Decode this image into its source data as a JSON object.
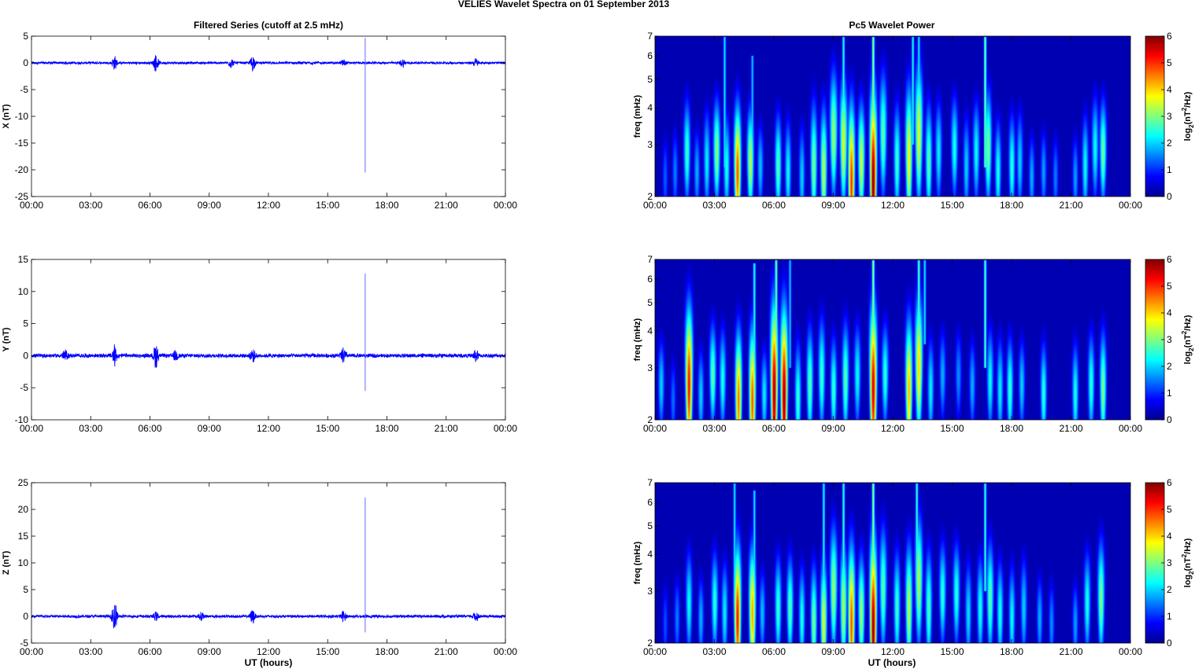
{
  "figure_title": "VELIES Wavelet Spectra on 01 September 2013",
  "left_column_title": "Filtered Series (cutoff at 2.5 mHz)",
  "right_column_title": "Pc5 Wavelet Power",
  "time_tick_labels": [
    "00:00",
    "03:00",
    "06:00",
    "09:00",
    "12:00",
    "15:00",
    "18:00",
    "21:00",
    "00:00"
  ],
  "x_axis_label": "UT (hours)",
  "colorbar": {
    "label_prefix": "log",
    "label_sub": "2",
    "label_mid": "(nT",
    "label_sup": "2",
    "label_suffix": "/Hz)",
    "ticks": [
      0,
      1,
      2,
      3,
      4,
      5,
      6
    ],
    "range": [
      0,
      6
    ],
    "colormap": "jet"
  },
  "chart_data": [
    {
      "type": "line",
      "component": "X",
      "ylabel": "X (nT)",
      "xlim_hours": [
        0,
        24
      ],
      "ylim": [
        -25,
        5
      ],
      "yticks": [
        -25,
        -20,
        -15,
        -10,
        -5,
        0,
        5
      ],
      "series_color": "#0000ff",
      "baseline_noise_amplitude": 0.25,
      "bursts": [
        {
          "t": 4.2,
          "amp": 1.2
        },
        {
          "t": 6.3,
          "amp": 1.5
        },
        {
          "t": 10.1,
          "amp": 0.8
        },
        {
          "t": 11.2,
          "amp": 1.4
        },
        {
          "t": 15.8,
          "amp": 0.6
        },
        {
          "t": 18.8,
          "amp": 0.7
        },
        {
          "t": 22.5,
          "amp": 0.8
        }
      ],
      "spikes": [
        {
          "t": 16.9,
          "min": -20.5,
          "max": 4.7
        }
      ]
    },
    {
      "type": "line",
      "component": "Y",
      "ylabel": "Y (nT)",
      "xlim_hours": [
        0,
        24
      ],
      "ylim": [
        -10,
        15
      ],
      "yticks": [
        -10,
        -5,
        0,
        5,
        10,
        15
      ],
      "series_color": "#0000ff",
      "baseline_noise_amplitude": 0.35,
      "bursts": [
        {
          "t": 1.7,
          "amp": 0.7
        },
        {
          "t": 4.2,
          "amp": 1.5
        },
        {
          "t": 6.3,
          "amp": 1.8
        },
        {
          "t": 7.3,
          "amp": 0.7
        },
        {
          "t": 11.2,
          "amp": 0.9
        },
        {
          "t": 15.8,
          "amp": 1.1
        },
        {
          "t": 22.5,
          "amp": 0.8
        }
      ],
      "spikes": [
        {
          "t": 16.9,
          "min": -5.5,
          "max": 12.8
        }
      ]
    },
    {
      "type": "line",
      "component": "Z",
      "ylabel": "Z (nT)",
      "xlim_hours": [
        0,
        24
      ],
      "ylim": [
        -5,
        25
      ],
      "yticks": [
        -5,
        0,
        5,
        10,
        15,
        20,
        25
      ],
      "series_color": "#0000ff",
      "baseline_noise_amplitude": 0.3,
      "bursts": [
        {
          "t": 4.2,
          "amp": 3.0
        },
        {
          "t": 6.3,
          "amp": 0.7
        },
        {
          "t": 8.6,
          "amp": 0.7
        },
        {
          "t": 11.2,
          "amp": 1.2
        },
        {
          "t": 15.8,
          "amp": 0.9
        },
        {
          "t": 22.5,
          "amp": 0.9
        }
      ],
      "spikes": [
        {
          "t": 16.9,
          "min": -3.0,
          "max": 22.2
        }
      ]
    },
    {
      "type": "heatmap",
      "component": "X",
      "ylabel": "freq (mHz)",
      "xlim_hours": [
        0,
        24
      ],
      "ylim_mhz": [
        2,
        7
      ],
      "y_scale": "log",
      "yticks": [
        2,
        3,
        4,
        5,
        6,
        7
      ],
      "value_range": [
        0,
        6
      ],
      "background_value": 0.3,
      "blobs": [
        {
          "t": 0.5,
          "f": 2.3,
          "peak": 1.3,
          "thick": 1.5
        },
        {
          "t": 1.0,
          "f": 2.4,
          "peak": 1.5,
          "thick": 1.5
        },
        {
          "t": 1.6,
          "f": 2.8,
          "peak": 2.6,
          "thick": 1.8
        },
        {
          "t": 2.1,
          "f": 2.4,
          "peak": 1.8,
          "thick": 1.5
        },
        {
          "t": 2.6,
          "f": 2.6,
          "peak": 2.2,
          "thick": 1.8
        },
        {
          "t": 3.1,
          "f": 2.8,
          "peak": 3.1,
          "thick": 1.8
        },
        {
          "t": 3.6,
          "f": 2.5,
          "peak": 2.4,
          "thick": 1.8
        },
        {
          "t": 4.15,
          "f": 2.4,
          "peak": 4.8,
          "thick": 2.2
        },
        {
          "t": 4.8,
          "f": 2.6,
          "peak": 3.4,
          "thick": 1.8
        },
        {
          "t": 5.3,
          "f": 2.5,
          "peak": 1.9,
          "thick": 1.5
        },
        {
          "t": 6.2,
          "f": 2.5,
          "peak": 2.8,
          "thick": 1.8
        },
        {
          "t": 6.7,
          "f": 2.4,
          "peak": 2.3,
          "thick": 1.8
        },
        {
          "t": 7.4,
          "f": 2.3,
          "peak": 2.0,
          "thick": 1.8
        },
        {
          "t": 8.0,
          "f": 2.5,
          "peak": 3.0,
          "thick": 2.2
        },
        {
          "t": 8.5,
          "f": 2.4,
          "peak": 3.4,
          "thick": 2.2
        },
        {
          "t": 9.0,
          "f": 3.2,
          "peak": 3.2,
          "thick": 2.2
        },
        {
          "t": 9.5,
          "f": 3.0,
          "peak": 3.6,
          "thick": 2.2
        },
        {
          "t": 9.9,
          "f": 2.2,
          "peak": 5.0,
          "thick": 2.6
        },
        {
          "t": 10.4,
          "f": 2.6,
          "peak": 3.5,
          "thick": 2.0
        },
        {
          "t": 11.0,
          "f": 2.2,
          "peak": 6.0,
          "thick": 3.0
        },
        {
          "t": 11.5,
          "f": 3.2,
          "peak": 2.8,
          "thick": 2.2
        },
        {
          "t": 12.2,
          "f": 2.6,
          "peak": 2.6,
          "thick": 2.0
        },
        {
          "t": 12.8,
          "f": 2.7,
          "peak": 3.8,
          "thick": 2.4
        },
        {
          "t": 13.3,
          "f": 3.2,
          "peak": 3.6,
          "thick": 2.4
        },
        {
          "t": 13.8,
          "f": 2.6,
          "peak": 2.8,
          "thick": 2.0
        },
        {
          "t": 14.3,
          "f": 2.8,
          "peak": 2.2,
          "thick": 1.8
        },
        {
          "t": 15.1,
          "f": 2.9,
          "peak": 2.4,
          "thick": 1.8
        },
        {
          "t": 15.7,
          "f": 2.5,
          "peak": 2.0,
          "thick": 1.8
        },
        {
          "t": 16.2,
          "f": 2.8,
          "peak": 2.3,
          "thick": 1.8
        },
        {
          "t": 16.8,
          "f": 2.9,
          "peak": 3.0,
          "thick": 2.0
        },
        {
          "t": 17.3,
          "f": 2.4,
          "peak": 2.4,
          "thick": 1.8
        },
        {
          "t": 18.0,
          "f": 2.5,
          "peak": 2.5,
          "thick": 1.8
        },
        {
          "t": 18.4,
          "f": 2.6,
          "peak": 2.0,
          "thick": 1.8
        },
        {
          "t": 19.0,
          "f": 2.3,
          "peak": 1.8,
          "thick": 1.5
        },
        {
          "t": 19.6,
          "f": 2.4,
          "peak": 1.7,
          "thick": 1.5
        },
        {
          "t": 20.2,
          "f": 2.3,
          "peak": 1.5,
          "thick": 1.5
        },
        {
          "t": 21.2,
          "f": 2.3,
          "peak": 1.7,
          "thick": 1.5
        },
        {
          "t": 21.7,
          "f": 2.5,
          "peak": 2.3,
          "thick": 1.8
        },
        {
          "t": 22.2,
          "f": 2.9,
          "peak": 2.3,
          "thick": 1.8
        },
        {
          "t": 22.6,
          "f": 2.8,
          "peak": 2.9,
          "thick": 1.8
        }
      ],
      "streaks": [
        {
          "t": 3.5,
          "fmin": 2.5,
          "fmax": 7.0,
          "val": 2.2
        },
        {
          "t": 4.9,
          "fmin": 3.0,
          "fmax": 6.0,
          "val": 2.0
        },
        {
          "t": 9.5,
          "fmin": 2.6,
          "fmax": 7.0,
          "val": 2.5
        },
        {
          "t": 11.0,
          "fmin": 2.5,
          "fmax": 7.0,
          "val": 3.2
        },
        {
          "t": 13.0,
          "fmin": 3.0,
          "fmax": 7.0,
          "val": 2.4
        },
        {
          "t": 13.3,
          "fmin": 3.4,
          "fmax": 7.0,
          "val": 2.2
        },
        {
          "t": 16.65,
          "fmin": 2.5,
          "fmax": 7.0,
          "val": 3.0
        }
      ]
    },
    {
      "type": "heatmap",
      "component": "Y",
      "ylabel": "freq (mHz)",
      "xlim_hours": [
        0,
        24
      ],
      "ylim_mhz": [
        2,
        7
      ],
      "y_scale": "log",
      "yticks": [
        2,
        3,
        4,
        5,
        6,
        7
      ],
      "value_range": [
        0,
        6
      ],
      "background_value": 0.3,
      "blobs": [
        {
          "t": 0.3,
          "f": 2.6,
          "peak": 2.0,
          "thick": 1.6
        },
        {
          "t": 0.9,
          "f": 2.3,
          "peak": 1.4,
          "thick": 1.5
        },
        {
          "t": 1.7,
          "f": 2.6,
          "peak": 5.2,
          "thick": 2.6
        },
        {
          "t": 2.3,
          "f": 2.4,
          "peak": 2.0,
          "thick": 1.6
        },
        {
          "t": 2.9,
          "f": 2.8,
          "peak": 2.8,
          "thick": 1.8
        },
        {
          "t": 3.4,
          "f": 2.7,
          "peak": 2.4,
          "thick": 1.8
        },
        {
          "t": 4.2,
          "f": 2.3,
          "peak": 4.6,
          "thick": 2.3
        },
        {
          "t": 4.9,
          "f": 2.3,
          "peak": 4.8,
          "thick": 2.4
        },
        {
          "t": 5.5,
          "f": 2.4,
          "peak": 2.2,
          "thick": 1.6
        },
        {
          "t": 6.0,
          "f": 2.4,
          "peak": 5.9,
          "thick": 3.0
        },
        {
          "t": 6.5,
          "f": 2.3,
          "peak": 6.0,
          "thick": 3.0
        },
        {
          "t": 7.2,
          "f": 2.3,
          "peak": 2.6,
          "thick": 2.0
        },
        {
          "t": 7.8,
          "f": 2.6,
          "peak": 2.8,
          "thick": 2.0
        },
        {
          "t": 8.4,
          "f": 2.8,
          "peak": 2.6,
          "thick": 2.0
        },
        {
          "t": 9.0,
          "f": 2.5,
          "peak": 2.6,
          "thick": 1.8
        },
        {
          "t": 9.6,
          "f": 2.7,
          "peak": 2.8,
          "thick": 2.0
        },
        {
          "t": 10.2,
          "f": 2.8,
          "peak": 2.3,
          "thick": 1.8
        },
        {
          "t": 11.0,
          "f": 2.5,
          "peak": 5.5,
          "thick": 2.8
        },
        {
          "t": 11.6,
          "f": 2.8,
          "peak": 2.5,
          "thick": 1.8
        },
        {
          "t": 12.8,
          "f": 2.5,
          "peak": 4.2,
          "thick": 2.4
        },
        {
          "t": 13.3,
          "f": 3.0,
          "peak": 4.0,
          "thick": 2.4
        },
        {
          "t": 13.9,
          "f": 2.5,
          "peak": 2.2,
          "thick": 1.8
        },
        {
          "t": 14.5,
          "f": 2.8,
          "peak": 1.8,
          "thick": 1.6
        },
        {
          "t": 15.3,
          "f": 2.8,
          "peak": 1.6,
          "thick": 1.6
        },
        {
          "t": 16.0,
          "f": 2.6,
          "peak": 1.8,
          "thick": 1.6
        },
        {
          "t": 16.9,
          "f": 2.7,
          "peak": 2.3,
          "thick": 1.8
        },
        {
          "t": 17.4,
          "f": 2.5,
          "peak": 2.2,
          "thick": 1.8
        },
        {
          "t": 17.9,
          "f": 2.5,
          "peak": 2.6,
          "thick": 1.8
        },
        {
          "t": 18.5,
          "f": 2.6,
          "peak": 2.0,
          "thick": 1.6
        },
        {
          "t": 19.6,
          "f": 2.4,
          "peak": 2.5,
          "thick": 1.8
        },
        {
          "t": 21.2,
          "f": 2.4,
          "peak": 2.4,
          "thick": 1.8
        },
        {
          "t": 22.0,
          "f": 2.6,
          "peak": 2.5,
          "thick": 1.8
        },
        {
          "t": 22.6,
          "f": 2.5,
          "peak": 3.0,
          "thick": 2.0
        }
      ],
      "streaks": [
        {
          "t": 5.0,
          "fmin": 3.0,
          "fmax": 6.8,
          "val": 2.5
        },
        {
          "t": 6.1,
          "fmin": 2.8,
          "fmax": 7.0,
          "val": 3.0
        },
        {
          "t": 6.8,
          "fmin": 3.0,
          "fmax": 7.0,
          "val": 2.0
        },
        {
          "t": 11.0,
          "fmin": 2.6,
          "fmax": 7.0,
          "val": 3.2
        },
        {
          "t": 13.3,
          "fmin": 3.2,
          "fmax": 7.0,
          "val": 2.8
        },
        {
          "t": 13.6,
          "fmin": 3.6,
          "fmax": 7.0,
          "val": 2.2
        },
        {
          "t": 16.65,
          "fmin": 3.0,
          "fmax": 7.0,
          "val": 2.8
        }
      ]
    },
    {
      "type": "heatmap",
      "component": "Z",
      "ylabel": "freq (mHz)",
      "xlim_hours": [
        0,
        24
      ],
      "ylim_mhz": [
        2,
        7
      ],
      "y_scale": "log",
      "yticks": [
        2,
        3,
        4,
        5,
        6,
        7
      ],
      "value_range": [
        0,
        6
      ],
      "background_value": 0.3,
      "blobs": [
        {
          "t": 0.5,
          "f": 2.3,
          "peak": 1.2,
          "thick": 1.5
        },
        {
          "t": 1.1,
          "f": 2.4,
          "peak": 1.5,
          "thick": 1.5
        },
        {
          "t": 1.7,
          "f": 2.7,
          "peak": 2.3,
          "thick": 1.8
        },
        {
          "t": 2.3,
          "f": 2.4,
          "peak": 1.8,
          "thick": 1.5
        },
        {
          "t": 3.0,
          "f": 2.7,
          "peak": 2.5,
          "thick": 1.8
        },
        {
          "t": 3.5,
          "f": 2.5,
          "peak": 2.2,
          "thick": 1.8
        },
        {
          "t": 4.15,
          "f": 2.4,
          "peak": 5.2,
          "thick": 2.4
        },
        {
          "t": 4.9,
          "f": 2.5,
          "peak": 4.3,
          "thick": 2.2
        },
        {
          "t": 5.4,
          "f": 2.5,
          "peak": 1.9,
          "thick": 1.5
        },
        {
          "t": 6.2,
          "f": 2.6,
          "peak": 2.6,
          "thick": 1.8
        },
        {
          "t": 6.8,
          "f": 2.6,
          "peak": 2.8,
          "thick": 1.8
        },
        {
          "t": 7.4,
          "f": 2.4,
          "peak": 2.4,
          "thick": 1.8
        },
        {
          "t": 8.0,
          "f": 2.3,
          "peak": 3.0,
          "thick": 2.0
        },
        {
          "t": 8.5,
          "f": 2.3,
          "peak": 3.6,
          "thick": 2.2
        },
        {
          "t": 9.0,
          "f": 3.0,
          "peak": 3.2,
          "thick": 2.2
        },
        {
          "t": 9.5,
          "f": 2.6,
          "peak": 3.3,
          "thick": 2.2
        },
        {
          "t": 9.9,
          "f": 2.3,
          "peak": 4.8,
          "thick": 2.6
        },
        {
          "t": 10.4,
          "f": 2.5,
          "peak": 3.2,
          "thick": 2.0
        },
        {
          "t": 11.0,
          "f": 2.2,
          "peak": 5.9,
          "thick": 3.0
        },
        {
          "t": 11.5,
          "f": 3.0,
          "peak": 2.8,
          "thick": 2.2
        },
        {
          "t": 12.2,
          "f": 2.6,
          "peak": 2.6,
          "thick": 2.0
        },
        {
          "t": 12.8,
          "f": 2.6,
          "peak": 3.4,
          "thick": 2.2
        },
        {
          "t": 13.3,
          "f": 3.2,
          "peak": 3.3,
          "thick": 2.2
        },
        {
          "t": 13.8,
          "f": 2.6,
          "peak": 2.7,
          "thick": 2.0
        },
        {
          "t": 14.5,
          "f": 2.9,
          "peak": 2.5,
          "thick": 1.8
        },
        {
          "t": 15.2,
          "f": 2.9,
          "peak": 2.5,
          "thick": 1.8
        },
        {
          "t": 15.8,
          "f": 2.5,
          "peak": 2.1,
          "thick": 1.8
        },
        {
          "t": 16.4,
          "f": 2.6,
          "peak": 2.4,
          "thick": 1.8
        },
        {
          "t": 16.9,
          "f": 2.8,
          "peak": 2.8,
          "thick": 2.0
        },
        {
          "t": 17.4,
          "f": 2.5,
          "peak": 2.4,
          "thick": 1.8
        },
        {
          "t": 18.0,
          "f": 2.4,
          "peak": 2.3,
          "thick": 1.8
        },
        {
          "t": 18.6,
          "f": 2.6,
          "peak": 2.0,
          "thick": 1.8
        },
        {
          "t": 19.4,
          "f": 2.4,
          "peak": 1.8,
          "thick": 1.5
        },
        {
          "t": 20.0,
          "f": 2.3,
          "peak": 1.6,
          "thick": 1.5
        },
        {
          "t": 21.2,
          "f": 2.3,
          "peak": 1.7,
          "thick": 1.5
        },
        {
          "t": 21.8,
          "f": 2.7,
          "peak": 2.4,
          "thick": 1.8
        },
        {
          "t": 22.5,
          "f": 2.8,
          "peak": 3.0,
          "thick": 2.0
        }
      ],
      "streaks": [
        {
          "t": 4.0,
          "fmin": 2.7,
          "fmax": 7.0,
          "val": 2.2
        },
        {
          "t": 5.0,
          "fmin": 3.0,
          "fmax": 6.6,
          "val": 2.2
        },
        {
          "t": 8.5,
          "fmin": 3.0,
          "fmax": 7.0,
          "val": 2.4
        },
        {
          "t": 9.5,
          "fmin": 2.6,
          "fmax": 7.0,
          "val": 2.6
        },
        {
          "t": 11.0,
          "fmin": 2.5,
          "fmax": 7.0,
          "val": 3.2
        },
        {
          "t": 13.2,
          "fmin": 3.2,
          "fmax": 7.0,
          "val": 2.6
        },
        {
          "t": 16.65,
          "fmin": 3.0,
          "fmax": 7.0,
          "val": 2.6
        }
      ]
    }
  ]
}
